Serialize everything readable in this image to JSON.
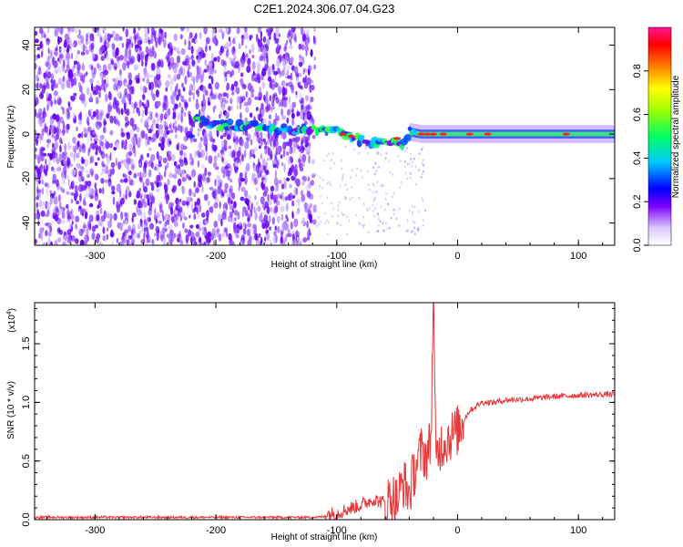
{
  "title": "C2E1.2024.306.07.04.G23",
  "chart_data": [
    {
      "type": "heatmap",
      "xlabel": "Height of straight line (km)",
      "ylabel": "Frequency (Hz)",
      "xlim": [
        -350,
        130
      ],
      "ylim": [
        -50,
        48
      ],
      "xticks": [
        -300,
        -200,
        -100,
        0,
        100
      ],
      "yticks": [
        -40,
        -20,
        0,
        20,
        40
      ],
      "ridge": [
        [
          -220,
          7
        ],
        [
          -200,
          4
        ],
        [
          -180,
          4
        ],
        [
          -160,
          3
        ],
        [
          -140,
          2
        ],
        [
          -120,
          2
        ],
        [
          -100,
          1
        ],
        [
          -90,
          -1
        ],
        [
          -80,
          -3
        ],
        [
          -70,
          -4
        ],
        [
          -60,
          -4
        ],
        [
          -50,
          -3
        ],
        [
          -45,
          -5
        ],
        [
          -40,
          1
        ],
        [
          -30,
          0
        ],
        [
          0,
          0
        ],
        [
          50,
          0
        ],
        [
          130,
          0
        ]
      ],
      "colorbar": {
        "label": "Normalized spectral amplitude",
        "range": [
          0,
          1
        ],
        "ticks": [
          "0.0",
          "0.2",
          "0.4",
          "0.6",
          "0.8"
        ]
      }
    },
    {
      "type": "line",
      "xlabel": "Height of straight line (km)",
      "ylabel": "SNR (10 * v/v)",
      "scale_note": "(x10",
      "scale_exp": "4",
      "xlim": [
        -350,
        130
      ],
      "ylim": [
        0,
        1.85
      ],
      "xticks": [
        -300,
        -200,
        -100,
        0,
        100
      ],
      "yticks": [
        "0.0",
        "0.5",
        "1.0",
        "1.5"
      ],
      "series": [
        {
          "color": "#e8383a",
          "x": [
            -350,
            -300,
            -250,
            -200,
            -150,
            -120,
            -100,
            -90,
            -80,
            -70,
            -60,
            -55,
            -50,
            -45,
            -40,
            -35,
            -30,
            -25,
            -22,
            -20,
            -18,
            -15,
            -10,
            -5,
            0,
            5,
            10,
            20,
            30,
            40,
            60,
            80,
            100,
            130
          ],
          "y": [
            0.02,
            0.02,
            0.02,
            0.02,
            0.02,
            0.02,
            0.03,
            0.07,
            0.1,
            0.15,
            0.12,
            0.2,
            0.16,
            0.32,
            0.22,
            0.45,
            0.58,
            0.55,
            0.7,
            1.85,
            0.5,
            0.62,
            0.68,
            0.72,
            0.76,
            0.85,
            0.93,
            1.0,
            1.0,
            1.02,
            1.03,
            1.05,
            1.06,
            1.07
          ]
        }
      ]
    }
  ]
}
